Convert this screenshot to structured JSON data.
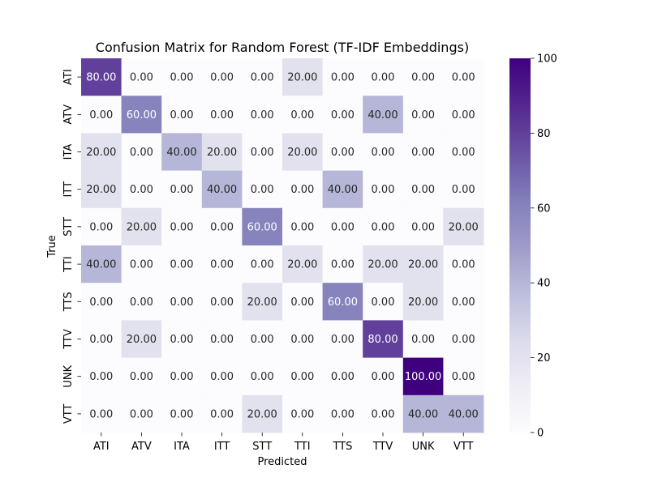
{
  "chart_data": {
    "type": "heatmap",
    "title": "Confusion Matrix for Random Forest (TF-IDF Embeddings)",
    "xlabel": "Predicted",
    "ylabel": "True",
    "x_categories": [
      "ATI",
      "ATV",
      "ITA",
      "ITT",
      "STT",
      "TTI",
      "TTS",
      "TTV",
      "UNK",
      "VTT"
    ],
    "y_categories": [
      "ATI",
      "ATV",
      "ITA",
      "ITT",
      "STT",
      "TTI",
      "TTS",
      "TTV",
      "UNK",
      "VTT"
    ],
    "values": [
      [
        80,
        0,
        0,
        0,
        0,
        20,
        0,
        0,
        0,
        0
      ],
      [
        0,
        60,
        0,
        0,
        0,
        0,
        0,
        40,
        0,
        0
      ],
      [
        20,
        0,
        40,
        20,
        0,
        20,
        0,
        0,
        0,
        0
      ],
      [
        20,
        0,
        0,
        40,
        0,
        0,
        40,
        0,
        0,
        0
      ],
      [
        0,
        20,
        0,
        0,
        60,
        0,
        0,
        0,
        0,
        20
      ],
      [
        40,
        0,
        0,
        0,
        0,
        20,
        0,
        20,
        20,
        0
      ],
      [
        0,
        0,
        0,
        0,
        20,
        0,
        60,
        0,
        20,
        0
      ],
      [
        0,
        20,
        0,
        0,
        0,
        0,
        0,
        80,
        0,
        0
      ],
      [
        0,
        0,
        0,
        0,
        0,
        0,
        0,
        0,
        100,
        0
      ],
      [
        0,
        0,
        0,
        0,
        20,
        0,
        0,
        0,
        40,
        40
      ]
    ],
    "value_format": "0.00",
    "colormap": "Purples",
    "colorbar": {
      "range": [
        0,
        100
      ],
      "ticks": [
        "0",
        "20",
        "40",
        "60",
        "80",
        "100"
      ]
    },
    "colors": {
      "low": "#fcfbfd",
      "high": "#3f007d"
    }
  }
}
